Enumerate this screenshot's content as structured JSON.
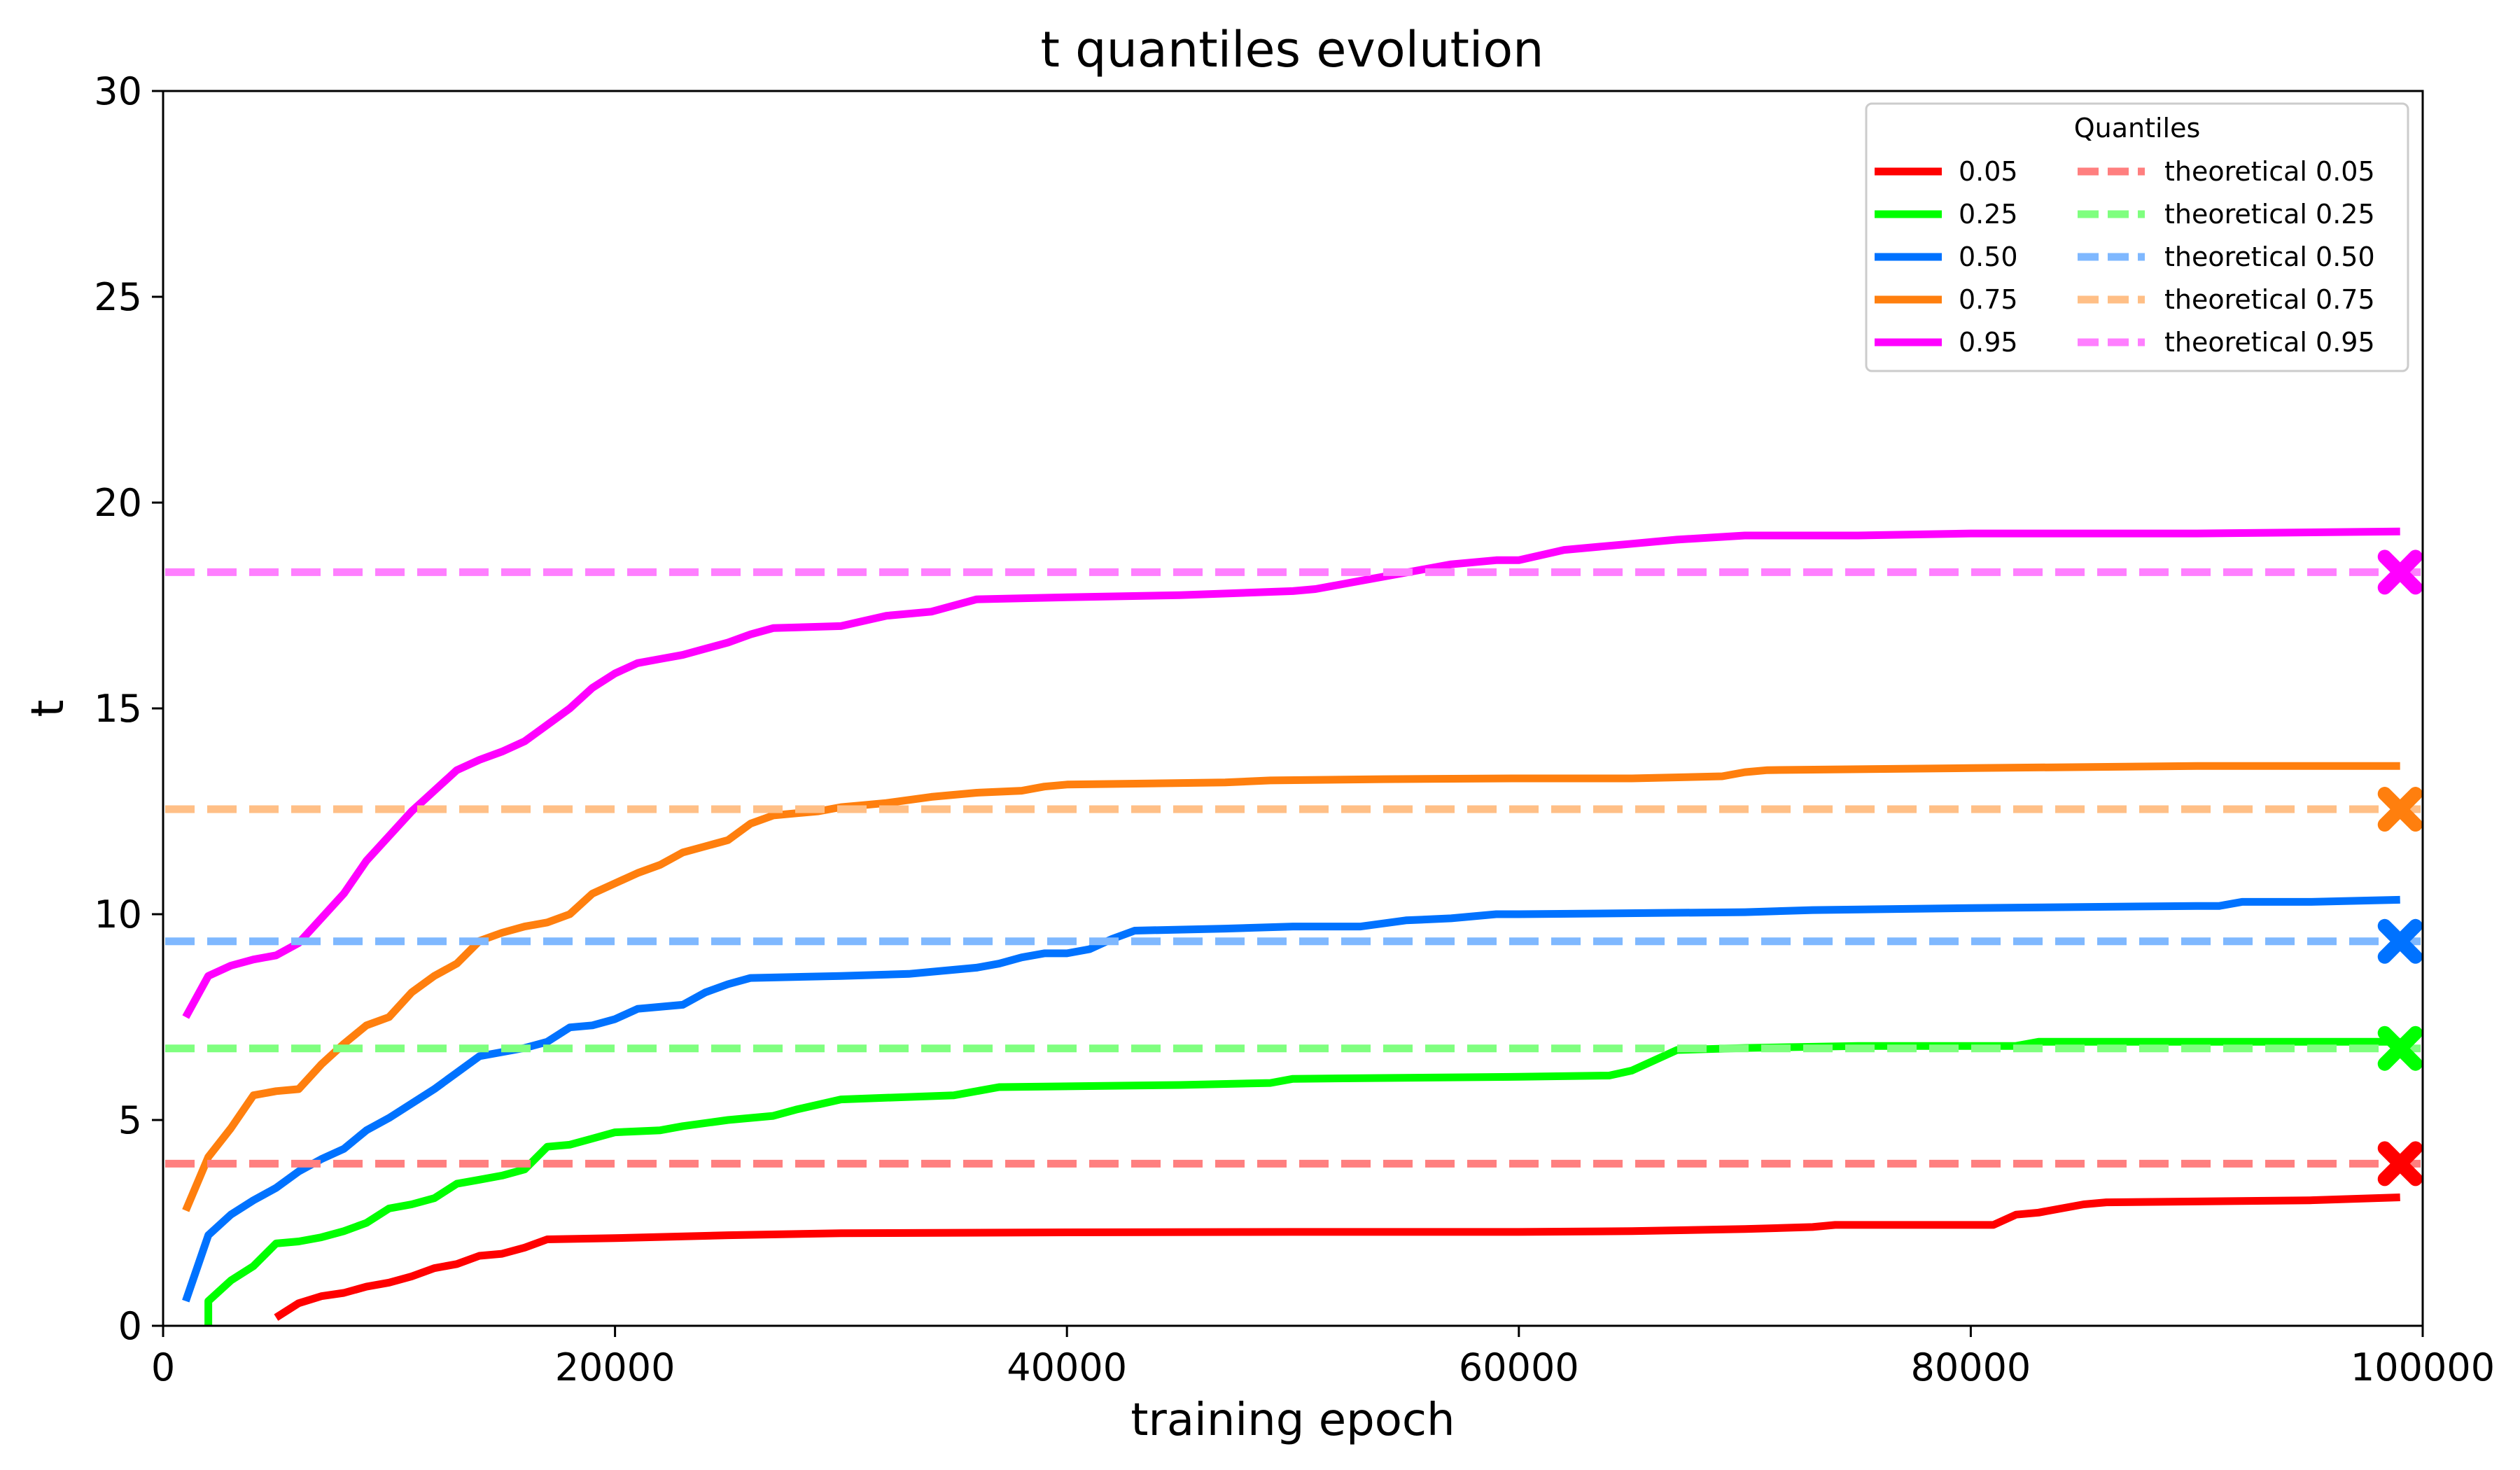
{
  "chart_data": {
    "type": "line",
    "title": "t quantiles evolution",
    "xlabel": "training epoch",
    "ylabel": "t",
    "xlim": [
      0,
      100000
    ],
    "ylim": [
      0,
      30
    ],
    "x_ticks": [
      0,
      20000,
      40000,
      60000,
      80000,
      100000
    ],
    "x_tick_labels": [
      "0",
      "20000",
      "40000",
      "60000",
      "80000",
      "100000"
    ],
    "y_ticks": [
      0,
      5,
      10,
      15,
      20,
      25,
      30
    ],
    "y_tick_labels": [
      "0",
      "5",
      "10",
      "15",
      "20",
      "25",
      "30"
    ],
    "grid": false,
    "legend": {
      "title": "Quantiles",
      "position": "top-right",
      "columns": 2
    },
    "series": [
      {
        "name": "0.05",
        "color": "#ff0000",
        "style": "solid",
        "points": [
          [
            5000,
            0.2
          ],
          [
            6000,
            0.55
          ],
          [
            7000,
            0.72
          ],
          [
            8000,
            0.8
          ],
          [
            9000,
            0.95
          ],
          [
            10000,
            1.05
          ],
          [
            11000,
            1.2
          ],
          [
            12000,
            1.4
          ],
          [
            13000,
            1.5
          ],
          [
            14000,
            1.7
          ],
          [
            15000,
            1.75
          ],
          [
            16000,
            1.9
          ],
          [
            17000,
            2.1
          ],
          [
            20000,
            2.13
          ],
          [
            25000,
            2.2
          ],
          [
            30000,
            2.25
          ],
          [
            40000,
            2.27
          ],
          [
            50000,
            2.28
          ],
          [
            60000,
            2.28
          ],
          [
            65000,
            2.3
          ],
          [
            70000,
            2.35
          ],
          [
            73000,
            2.4
          ],
          [
            74000,
            2.45
          ],
          [
            81000,
            2.45
          ],
          [
            82000,
            2.7
          ],
          [
            83000,
            2.75
          ],
          [
            85000,
            2.95
          ],
          [
            86000,
            3.0
          ],
          [
            90000,
            3.02
          ],
          [
            95000,
            3.05
          ],
          [
            99000,
            3.12
          ]
        ]
      },
      {
        "name": "0.25",
        "color": "#00ff00",
        "style": "solid",
        "points": [
          [
            2000,
            0.0
          ],
          [
            2000,
            0.6
          ],
          [
            3000,
            1.1
          ],
          [
            4000,
            1.45
          ],
          [
            5000,
            2.0
          ],
          [
            6000,
            2.05
          ],
          [
            7000,
            2.15
          ],
          [
            8000,
            2.3
          ],
          [
            9000,
            2.5
          ],
          [
            10000,
            2.85
          ],
          [
            11000,
            2.95
          ],
          [
            12000,
            3.1
          ],
          [
            13000,
            3.45
          ],
          [
            14000,
            3.55
          ],
          [
            15000,
            3.65
          ],
          [
            16000,
            3.8
          ],
          [
            17000,
            4.35
          ],
          [
            18000,
            4.4
          ],
          [
            19000,
            4.55
          ],
          [
            20000,
            4.7
          ],
          [
            22000,
            4.75
          ],
          [
            23000,
            4.85
          ],
          [
            25000,
            5.0
          ],
          [
            27000,
            5.1
          ],
          [
            28000,
            5.25
          ],
          [
            30000,
            5.5
          ],
          [
            35000,
            5.6
          ],
          [
            37000,
            5.8
          ],
          [
            45000,
            5.85
          ],
          [
            49000,
            5.9
          ],
          [
            50000,
            6.0
          ],
          [
            60000,
            6.05
          ],
          [
            64000,
            6.08
          ],
          [
            65000,
            6.2
          ],
          [
            67000,
            6.7
          ],
          [
            70000,
            6.75
          ],
          [
            75000,
            6.8
          ],
          [
            82000,
            6.8
          ],
          [
            83000,
            6.9
          ],
          [
            90000,
            6.9
          ],
          [
            99000,
            6.9
          ]
        ]
      },
      {
        "name": "0.50",
        "color": "#0072ff",
        "style": "solid",
        "points": [
          [
            1000,
            0.6
          ],
          [
            2000,
            2.2
          ],
          [
            3000,
            2.7
          ],
          [
            4000,
            3.05
          ],
          [
            5000,
            3.35
          ],
          [
            6000,
            3.75
          ],
          [
            7000,
            4.05
          ],
          [
            8000,
            4.3
          ],
          [
            9000,
            4.75
          ],
          [
            10000,
            5.05
          ],
          [
            11000,
            5.4
          ],
          [
            12000,
            5.75
          ],
          [
            13000,
            6.15
          ],
          [
            14000,
            6.55
          ],
          [
            16000,
            6.75
          ],
          [
            17000,
            6.9
          ],
          [
            18000,
            7.25
          ],
          [
            19000,
            7.3
          ],
          [
            20000,
            7.45
          ],
          [
            21000,
            7.7
          ],
          [
            23000,
            7.8
          ],
          [
            24000,
            8.1
          ],
          [
            25000,
            8.3
          ],
          [
            26000,
            8.45
          ],
          [
            30000,
            8.5
          ],
          [
            33000,
            8.55
          ],
          [
            36000,
            8.7
          ],
          [
            37000,
            8.8
          ],
          [
            38000,
            8.95
          ],
          [
            39000,
            9.05
          ],
          [
            40000,
            9.05
          ],
          [
            41000,
            9.15
          ],
          [
            42000,
            9.4
          ],
          [
            43000,
            9.6
          ],
          [
            47000,
            9.65
          ],
          [
            50000,
            9.7
          ],
          [
            53000,
            9.7
          ],
          [
            55000,
            9.85
          ],
          [
            57000,
            9.9
          ],
          [
            59000,
            10.0
          ],
          [
            60000,
            10.0
          ],
          [
            70000,
            10.05
          ],
          [
            73000,
            10.1
          ],
          [
            80000,
            10.15
          ],
          [
            90000,
            10.2
          ],
          [
            91000,
            10.2
          ],
          [
            92000,
            10.3
          ],
          [
            95000,
            10.3
          ],
          [
            99000,
            10.35
          ]
        ]
      },
      {
        "name": "0.75",
        "color": "#ff7f0e",
        "style": "solid",
        "points": [
          [
            1000,
            2.8
          ],
          [
            2000,
            4.1
          ],
          [
            3000,
            4.8
          ],
          [
            4000,
            5.6
          ],
          [
            5000,
            5.7
          ],
          [
            6000,
            5.75
          ],
          [
            7000,
            6.35
          ],
          [
            8000,
            6.85
          ],
          [
            9000,
            7.3
          ],
          [
            10000,
            7.5
          ],
          [
            11000,
            8.1
          ],
          [
            12000,
            8.5
          ],
          [
            13000,
            8.8
          ],
          [
            14000,
            9.35
          ],
          [
            15000,
            9.55
          ],
          [
            16000,
            9.7
          ],
          [
            17000,
            9.8
          ],
          [
            18000,
            10.0
          ],
          [
            19000,
            10.5
          ],
          [
            20000,
            10.75
          ],
          [
            21000,
            11.0
          ],
          [
            22000,
            11.2
          ],
          [
            23000,
            11.5
          ],
          [
            24000,
            11.65
          ],
          [
            25000,
            11.8
          ],
          [
            26000,
            12.2
          ],
          [
            27000,
            12.4
          ],
          [
            28000,
            12.45
          ],
          [
            29000,
            12.5
          ],
          [
            30000,
            12.6
          ],
          [
            31000,
            12.65
          ],
          [
            32000,
            12.7
          ],
          [
            34000,
            12.85
          ],
          [
            36000,
            12.95
          ],
          [
            38000,
            13.0
          ],
          [
            39000,
            13.1
          ],
          [
            40000,
            13.15
          ],
          [
            47000,
            13.2
          ],
          [
            49000,
            13.25
          ],
          [
            54000,
            13.28
          ],
          [
            60000,
            13.3
          ],
          [
            65000,
            13.3
          ],
          [
            69000,
            13.35
          ],
          [
            70000,
            13.45
          ],
          [
            71000,
            13.5
          ],
          [
            80000,
            13.55
          ],
          [
            90000,
            13.6
          ],
          [
            99000,
            13.6
          ]
        ]
      },
      {
        "name": "0.95",
        "color": "#ff00ff",
        "style": "solid",
        "points": [
          [
            1000,
            7.5
          ],
          [
            2000,
            8.5
          ],
          [
            3000,
            8.75
          ],
          [
            4000,
            8.9
          ],
          [
            5000,
            9.0
          ],
          [
            6000,
            9.3
          ],
          [
            7000,
            9.9
          ],
          [
            8000,
            10.5
          ],
          [
            9000,
            11.3
          ],
          [
            10000,
            11.9
          ],
          [
            11000,
            12.5
          ],
          [
            12000,
            13.0
          ],
          [
            13000,
            13.5
          ],
          [
            14000,
            13.75
          ],
          [
            15000,
            13.95
          ],
          [
            16000,
            14.2
          ],
          [
            17000,
            14.6
          ],
          [
            18000,
            15.0
          ],
          [
            19000,
            15.5
          ],
          [
            20000,
            15.85
          ],
          [
            21000,
            16.1
          ],
          [
            22000,
            16.2
          ],
          [
            23000,
            16.3
          ],
          [
            24000,
            16.45
          ],
          [
            25000,
            16.6
          ],
          [
            26000,
            16.8
          ],
          [
            27000,
            16.95
          ],
          [
            30000,
            17.0
          ],
          [
            32000,
            17.25
          ],
          [
            34000,
            17.35
          ],
          [
            36000,
            17.65
          ],
          [
            40000,
            17.7
          ],
          [
            45000,
            17.75
          ],
          [
            50000,
            17.85
          ],
          [
            51000,
            17.9
          ],
          [
            53000,
            18.1
          ],
          [
            55000,
            18.3
          ],
          [
            57000,
            18.5
          ],
          [
            59000,
            18.6
          ],
          [
            60000,
            18.6
          ],
          [
            62000,
            18.85
          ],
          [
            65000,
            19.0
          ],
          [
            67000,
            19.1
          ],
          [
            70000,
            19.2
          ],
          [
            75000,
            19.2
          ],
          [
            80000,
            19.25
          ],
          [
            90000,
            19.25
          ],
          [
            99000,
            19.3
          ]
        ]
      },
      {
        "name": "theoretical 0.05",
        "color": "#ff7f7f",
        "style": "dashed",
        "y": 3.94
      },
      {
        "name": "theoretical 0.25",
        "color": "#7fff7f",
        "style": "dashed",
        "y": 6.74
      },
      {
        "name": "theoretical 0.50",
        "color": "#7fb8ff",
        "style": "dashed",
        "y": 9.34
      },
      {
        "name": "theoretical 0.75",
        "color": "#ffbf86",
        "style": "dashed",
        "y": 12.55
      },
      {
        "name": "theoretical 0.95",
        "color": "#ff7fff",
        "style": "dashed",
        "y": 18.31
      }
    ],
    "markers": [
      {
        "x": 99000,
        "y": 3.94,
        "color": "#ff0000",
        "symbol": "X"
      },
      {
        "x": 99000,
        "y": 6.74,
        "color": "#00ff00",
        "symbol": "X"
      },
      {
        "x": 99000,
        "y": 9.34,
        "color": "#0072ff",
        "symbol": "X"
      },
      {
        "x": 99000,
        "y": 12.55,
        "color": "#ff7f0e",
        "symbol": "X"
      },
      {
        "x": 99000,
        "y": 18.31,
        "color": "#ff00ff",
        "symbol": "X"
      }
    ]
  }
}
